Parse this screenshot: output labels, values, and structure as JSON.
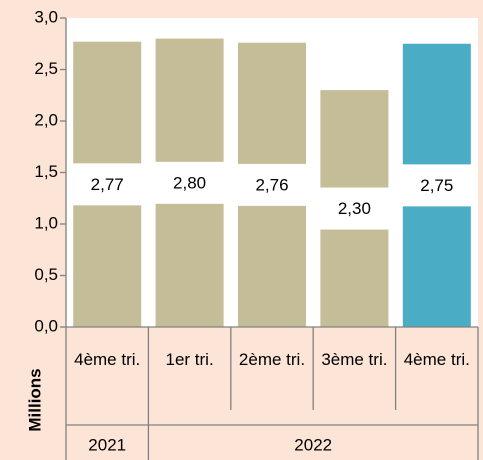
{
  "chart_data": {
    "type": "bar",
    "y_axis_label": "Millions",
    "categories": [
      "4ème tri.",
      "1er tri.",
      "2ème tri.",
      "3ème tri.",
      "4ème tri."
    ],
    "groups": [
      {
        "label": "2021",
        "span": 1
      },
      {
        "label": "2022",
        "span": 4
      }
    ],
    "values": [
      2.77,
      2.8,
      2.76,
      2.3,
      2.75
    ],
    "value_labels": [
      "2,77",
      "2,80",
      "2,76",
      "2,30",
      "2,75"
    ],
    "colors": [
      "#c4bd97",
      "#c4bd97",
      "#c4bd97",
      "#c4bd97",
      "#4bacc6"
    ],
    "ylim": [
      0,
      3
    ],
    "yticks": [
      {
        "value": 0,
        "label": "0,0"
      },
      {
        "value": 0.5,
        "label": "0,5"
      },
      {
        "value": 1,
        "label": "1,0"
      },
      {
        "value": 1.5,
        "label": "1,5"
      },
      {
        "value": 2,
        "label": "2,0"
      },
      {
        "value": 2.5,
        "label": "2,5"
      },
      {
        "value": 3,
        "label": "3,0"
      }
    ],
    "grid": false
  }
}
